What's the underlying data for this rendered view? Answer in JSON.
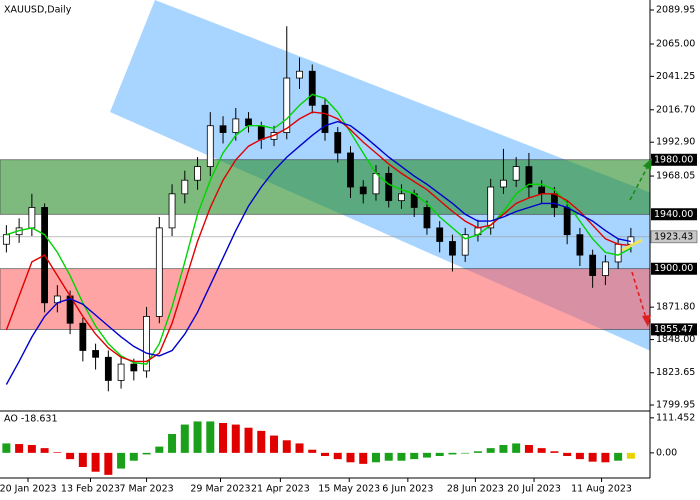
{
  "chart_data": {
    "type": "candlestick",
    "title": "XAUUSD,Daily",
    "ylim": [
      1796.3,
      2097.3
    ],
    "yticks": [
      2089.95,
      {
        "value": 2065,
        "label": "2065.00"
      },
      2041.25,
      {
        "value": 2016.7,
        "label": "2016.70"
      },
      {
        "value": 1992.9,
        "label": "1992.90"
      },
      1968.05,
      {
        "value": 1871.8,
        "label": "1871.80"
      },
      {
        "value": 1848,
        "label": "1848.00"
      },
      1823.65,
      1799.95
    ],
    "xlim": [
      -0.5,
      50.5
    ],
    "xticks": [
      {
        "value": 1.7,
        "label": "20 Jan 2023"
      },
      {
        "value": 6.6,
        "label": "13 Feb 2023"
      },
      {
        "value": 11,
        "label": "7 Mar 2023"
      },
      {
        "value": 16.8,
        "label": "29 Mar 2023"
      },
      {
        "value": 21.5,
        "label": "21 Apr 2023"
      },
      {
        "value": 26.9,
        "label": "15 May 2023"
      },
      {
        "value": 31.5,
        "label": "6 Jun 2023"
      },
      {
        "value": 36.8,
        "label": "28 Jun 2023"
      },
      {
        "value": 41.4,
        "label": "20 Jul 2023"
      },
      {
        "value": 46.7,
        "label": "11 Aug 2023"
      }
    ],
    "open": [
      1918,
      1925,
      1930,
      1945,
      1875,
      1880,
      1860,
      1840,
      1835,
      1818,
      1830,
      1825,
      1865,
      1930,
      1955,
      1965,
      1975,
      2005,
      2000,
      2010,
      2005,
      1995,
      2000,
      2040,
      2045,
      2020,
      2000,
      1985,
      1960,
      1955,
      1970,
      1950,
      1955,
      1945,
      1930,
      1920,
      1910,
      1925,
      1930,
      1960,
      1965,
      1975,
      1960,
      1955,
      1945,
      1925,
      1910,
      1895,
      1905,
      1918
    ],
    "high": [
      1932,
      1937,
      1955,
      1948,
      1888,
      1884,
      1864,
      1845,
      1840,
      1836,
      1834,
      1872,
      1938,
      1962,
      1972,
      1982,
      2015,
      2012,
      2018,
      2015,
      2008,
      2005,
      2078,
      2055,
      2050,
      2025,
      2004,
      1990,
      1965,
      1976,
      1975,
      1962,
      1958,
      1950,
      1935,
      1925,
      1930,
      1936,
      1966,
      1988,
      1982,
      1985,
      1965,
      1960,
      1950,
      1930,
      1914,
      1910,
      1922,
      1930
    ],
    "low": [
      1912,
      1919,
      1924,
      1868,
      1868,
      1852,
      1832,
      1826,
      1810,
      1812,
      1818,
      1820,
      1860,
      1924,
      1948,
      1958,
      1968,
      1992,
      1994,
      2000,
      1988,
      1990,
      1995,
      2032,
      2014,
      1994,
      1978,
      1952,
      1948,
      1950,
      1945,
      1944,
      1938,
      1925,
      1912,
      1898,
      1905,
      1920,
      1925,
      1955,
      1960,
      1952,
      1948,
      1938,
      1918,
      1902,
      1886,
      1888,
      1900,
      1912
    ],
    "close": [
      1925,
      1930,
      1945,
      1875,
      1880,
      1860,
      1840,
      1835,
      1818,
      1830,
      1825,
      1865,
      1930,
      1955,
      1965,
      1975,
      2005,
      2000,
      2010,
      2005,
      1995,
      2000,
      2040,
      2045,
      2020,
      2000,
      1985,
      1960,
      1955,
      1970,
      1950,
      1955,
      1945,
      1930,
      1920,
      1910,
      1925,
      1930,
      1960,
      1965,
      1975,
      1960,
      1955,
      1945,
      1925,
      1910,
      1895,
      1905,
      1918,
      1923.43
    ],
    "up_color": "#ffffff",
    "down_color": "#000000",
    "series": [
      {
        "color": "#00d400",
        "values": [
          1925,
          1928,
          1930,
          1925,
          1912,
          1895,
          1875,
          1858,
          1845,
          1836,
          1831,
          1830,
          1845,
          1872,
          1905,
          1940,
          1965,
          1985,
          1998,
          2005,
          2005,
          2003,
          2010,
          2020,
          2028,
          2025,
          2015,
          2000,
          1985,
          1970,
          1962,
          1958,
          1955,
          1948,
          1938,
          1930,
          1922,
          1925,
          1932,
          1942,
          1955,
          1962,
          1962,
          1958,
          1948,
          1935,
          1922,
          1912,
          1910,
          1915
        ]
      },
      {
        "color": "#e00000",
        "values": [
          1855,
          1880,
          1905,
          1910,
          1895,
          1880,
          1865,
          1852,
          1842,
          1835,
          1832,
          1832,
          1838,
          1860,
          1890,
          1920,
          1945,
          1965,
          1980,
          1990,
          1995,
          1998,
          2003,
          2010,
          2015,
          2014,
          2010,
          2002,
          1993,
          1985,
          1977,
          1970,
          1964,
          1958,
          1950,
          1942,
          1935,
          1930,
          1932,
          1940,
          1948,
          1952,
          1955,
          1955,
          1950,
          1942,
          1932,
          1922,
          1918,
          1917
        ]
      },
      {
        "color": "#0000cc",
        "values": [
          1815,
          1832,
          1850,
          1865,
          1875,
          1878,
          1874,
          1866,
          1858,
          1850,
          1843,
          1838,
          1836,
          1840,
          1852,
          1868,
          1888,
          1908,
          1928,
          1946,
          1960,
          1972,
          1982,
          1990,
          1998,
          2005,
          2008,
          2005,
          1998,
          1990,
          1982,
          1975,
          1968,
          1962,
          1955,
          1948,
          1940,
          1935,
          1935,
          1938,
          1942,
          1945,
          1948,
          1948,
          1945,
          1940,
          1935,
          1928,
          1922,
          1920
        ]
      }
    ],
    "last_price": {
      "value": 1923.43,
      "label": "1923.43"
    },
    "levels": [
      {
        "value": 1980,
        "label": "1980.00"
      },
      {
        "value": 1940,
        "label": "1940.00"
      },
      {
        "value": 1900,
        "label": "1900.00"
      },
      {
        "value": 1855.47,
        "label": "1855.47"
      }
    ],
    "zone_colors": [
      "rgba(40,140,40,0.6)",
      "rgba(255,90,90,0.55)"
    ],
    "oscillator": {
      "type": "bar",
      "title": "AO -18.631",
      "ylim": [
        -80,
        130
      ],
      "yticks": [
        111.452,
        {
          "value": 0,
          "label": "0.00"
        }
      ],
      "values": [
        30,
        28,
        25,
        15,
        2,
        -20,
        -45,
        -60,
        -70,
        -50,
        -25,
        -5,
        20,
        60,
        90,
        100,
        100,
        95,
        90,
        80,
        70,
        55,
        40,
        30,
        10,
        -10,
        -20,
        -30,
        -35,
        -30,
        -25,
        -25,
        -20,
        -15,
        -10,
        -5,
        -2,
        5,
        15,
        25,
        30,
        25,
        15,
        5,
        -10,
        -20,
        -28,
        -30,
        -25,
        -18.631
      ],
      "up_color": "#1aa01a",
      "down_color": "#e00000",
      "current_color": "#e8d200"
    }
  }
}
